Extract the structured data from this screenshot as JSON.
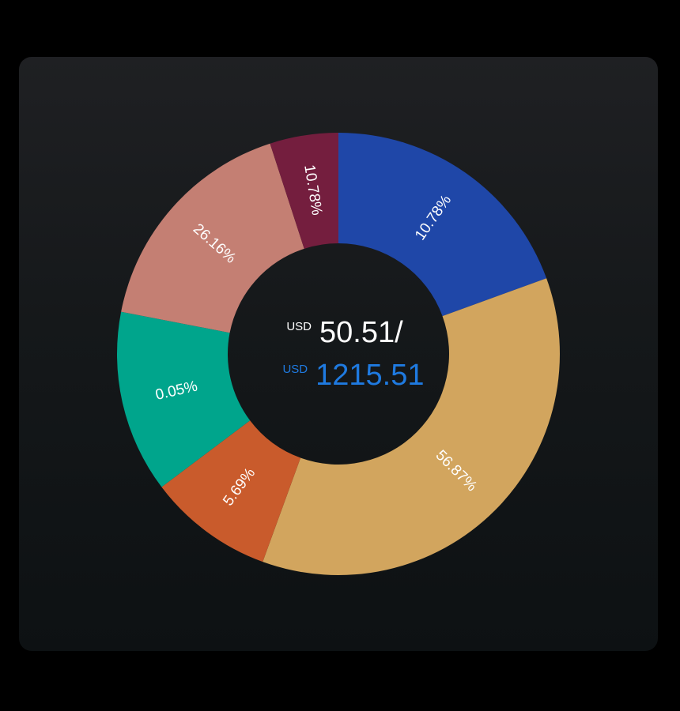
{
  "colors": {
    "background": "#000000",
    "card": "#15181a",
    "spent_text": "#ffffff",
    "total_text": "#1f7ae0"
  },
  "center": {
    "spent_currency": "USD",
    "spent_value": "50.51/",
    "total_currency": "USD",
    "total_value": "1215.51"
  },
  "chart_data": {
    "type": "pie",
    "variant": "donut",
    "title": "",
    "slices": [
      {
        "label": "10.78%",
        "value": 10.78,
        "color": "#1f47a8"
      },
      {
        "label": "56.87%",
        "value": 56.87,
        "color": "#d2a55e"
      },
      {
        "label": "5.69%",
        "value": 5.69,
        "color": "#c95b2c"
      },
      {
        "label": "0.05%",
        "value": 0.05,
        "color": "#00a58c"
      },
      {
        "label": "26.16%",
        "value": 26.16,
        "color": "#c47f73"
      },
      {
        "label": "10.78%",
        "value": 10.78,
        "color": "#741e3e"
      }
    ]
  }
}
